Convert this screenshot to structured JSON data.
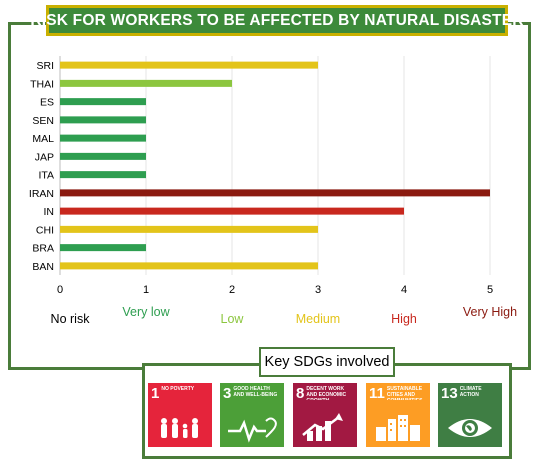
{
  "title": "RISK FOR WORKERS TO BE AFFECTED BY NATURAL DISASTER",
  "chart_data": {
    "type": "bar",
    "orientation": "horizontal",
    "categories": [
      "SRI",
      "THAI",
      "ES",
      "SEN",
      "MAL",
      "JAP",
      "ITA",
      "IRAN",
      "IN",
      "CHI",
      "BRA",
      "BAN"
    ],
    "values": [
      3,
      2,
      1,
      1,
      1,
      1,
      1,
      5,
      4,
      3,
      1,
      3
    ],
    "bar_colors": [
      "#e3c41a",
      "#8cc63f",
      "#2e9e50",
      "#2e9e50",
      "#2e9e50",
      "#2e9e50",
      "#2e9e50",
      "#8b1a10",
      "#c8281e",
      "#e3c41a",
      "#2e9e50",
      "#e3c41a"
    ],
    "xticks": [
      "0",
      "1",
      "2",
      "3",
      "4",
      "5"
    ],
    "xlim": [
      0,
      5
    ],
    "grid": "vertical",
    "risk_levels": [
      {
        "label": "No risk",
        "value": 0,
        "color": "#000000"
      },
      {
        "label": "Very low",
        "value": 1,
        "color": "#2e9e50"
      },
      {
        "label": "Low",
        "value": 2,
        "color": "#8cc63f"
      },
      {
        "label": "Medium",
        "value": 3,
        "color": "#e3c41a"
      },
      {
        "label": "High",
        "value": 4,
        "color": "#c8281e"
      },
      {
        "label": "Very High",
        "value": 5,
        "color": "#8b1a10"
      }
    ]
  },
  "sdg_section": {
    "title": "Key SDGs involved",
    "goals": [
      {
        "number": "1",
        "name": "No Poverty",
        "color": "#e5243b",
        "icon": "family-icon"
      },
      {
        "number": "3",
        "name": "Good Health and Well-Being",
        "color": "#4c9f38",
        "icon": "heartbeat-icon"
      },
      {
        "number": "8",
        "name": "Decent Work and Economic Growth",
        "color": "#a21942",
        "icon": "growth-chart-icon"
      },
      {
        "number": "11",
        "name": "Sustainable Cities and Communities",
        "color": "#fd9d24",
        "icon": "city-buildings-icon"
      },
      {
        "number": "13",
        "name": "Climate Action",
        "color": "#3f7e44",
        "icon": "eye-globe-icon"
      }
    ]
  }
}
